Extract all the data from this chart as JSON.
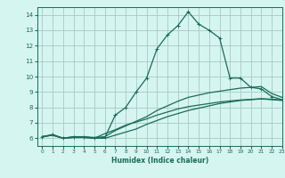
{
  "xlabel": "Humidex (Indice chaleur)",
  "background_color": "#d5f5f0",
  "grid_color": "#aac8c0",
  "line_color": "#1a6b5a",
  "xlim": [
    -0.5,
    23
  ],
  "ylim": [
    5.5,
    14.5
  ],
  "xticks": [
    0,
    1,
    2,
    3,
    4,
    5,
    6,
    7,
    8,
    9,
    10,
    11,
    12,
    13,
    14,
    15,
    16,
    17,
    18,
    19,
    20,
    21,
    22,
    23
  ],
  "yticks": [
    6,
    7,
    8,
    9,
    10,
    11,
    12,
    13,
    14
  ],
  "lines": [
    {
      "x": [
        0,
        1,
        2,
        3,
        4,
        5,
        6,
        7,
        8,
        9,
        10,
        11,
        12,
        13,
        14,
        15,
        16,
        17,
        18,
        19,
        20,
        21,
        22,
        23
      ],
      "y": [
        6.1,
        6.25,
        6.0,
        6.1,
        6.1,
        6.0,
        6.05,
        7.5,
        8.0,
        9.0,
        9.9,
        11.8,
        12.7,
        13.3,
        14.2,
        13.4,
        13.0,
        12.5,
        9.9,
        9.9,
        9.3,
        9.2,
        8.7,
        8.5
      ],
      "marker": "+"
    },
    {
      "x": [
        0,
        1,
        2,
        3,
        4,
        5,
        6,
        7,
        8,
        9,
        10,
        11,
        12,
        13,
        14,
        15,
        16,
        17,
        18,
        19,
        20,
        21,
        22,
        23
      ],
      "y": [
        6.1,
        6.2,
        6.0,
        6.1,
        6.1,
        6.05,
        6.1,
        6.5,
        6.8,
        7.1,
        7.4,
        7.8,
        8.1,
        8.4,
        8.65,
        8.8,
        8.95,
        9.05,
        9.15,
        9.25,
        9.3,
        9.35,
        8.9,
        8.65
      ],
      "marker": null
    },
    {
      "x": [
        0,
        1,
        2,
        3,
        4,
        5,
        6,
        7,
        8,
        9,
        10,
        11,
        12,
        13,
        14,
        15,
        16,
        17,
        18,
        19,
        20,
        21,
        22,
        23
      ],
      "y": [
        6.1,
        6.2,
        6.0,
        6.05,
        6.05,
        6.0,
        6.0,
        6.2,
        6.4,
        6.6,
        6.9,
        7.15,
        7.4,
        7.6,
        7.8,
        7.95,
        8.1,
        8.25,
        8.35,
        8.45,
        8.5,
        8.55,
        8.5,
        8.45
      ],
      "marker": null
    },
    {
      "x": [
        0,
        1,
        2,
        3,
        4,
        5,
        6,
        7,
        8,
        9,
        10,
        11,
        12,
        13,
        14,
        15,
        16,
        17,
        18,
        19,
        20,
        21,
        22,
        23
      ],
      "y": [
        6.1,
        6.2,
        6.0,
        6.05,
        6.05,
        6.0,
        6.3,
        6.55,
        6.85,
        7.05,
        7.25,
        7.5,
        7.7,
        7.9,
        8.05,
        8.15,
        8.25,
        8.35,
        8.42,
        8.48,
        8.52,
        8.56,
        8.53,
        8.48
      ],
      "marker": null
    }
  ]
}
